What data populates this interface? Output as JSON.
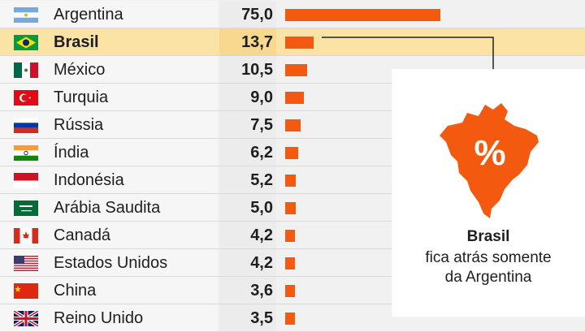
{
  "chart_data": {
    "type": "bar",
    "orientation": "horizontal",
    "categories": [
      "Argentina",
      "Brasil",
      "México",
      "Turquia",
      "Rússia",
      "Índia",
      "Indonésia",
      "Arábia Saudita",
      "Canadá",
      "Estados Unidos",
      "China",
      "Reino Unido"
    ],
    "values": [
      75.0,
      13.7,
      10.5,
      9.0,
      7.5,
      6.2,
      5.2,
      5.0,
      4.2,
      4.2,
      3.6,
      3.5
    ],
    "value_labels": [
      "75,0",
      "13,7",
      "10,5",
      "9,0",
      "7,5",
      "6,2",
      "5,2",
      "5,0",
      "4,2",
      "4,2",
      "3,6",
      "3,5"
    ],
    "highlight": "Brasil",
    "bar_color": "#f35a0f",
    "highlight_row_color": "#fbe3a6",
    "flags": [
      "argentina-flag-icon",
      "brazil-flag-icon",
      "mexico-flag-icon",
      "turkey-flag-icon",
      "russia-flag-icon",
      "india-flag-icon",
      "indonesia-flag-icon",
      "saudi-arabia-flag-icon",
      "canada-flag-icon",
      "usa-flag-icon",
      "china-flag-icon",
      "uk-flag-icon"
    ]
  },
  "callout": {
    "title": "Brasil",
    "line1": "fica atrás somente",
    "line2": "da Argentina",
    "icon": "brazil-map-percent-icon",
    "icon_text": "%"
  }
}
